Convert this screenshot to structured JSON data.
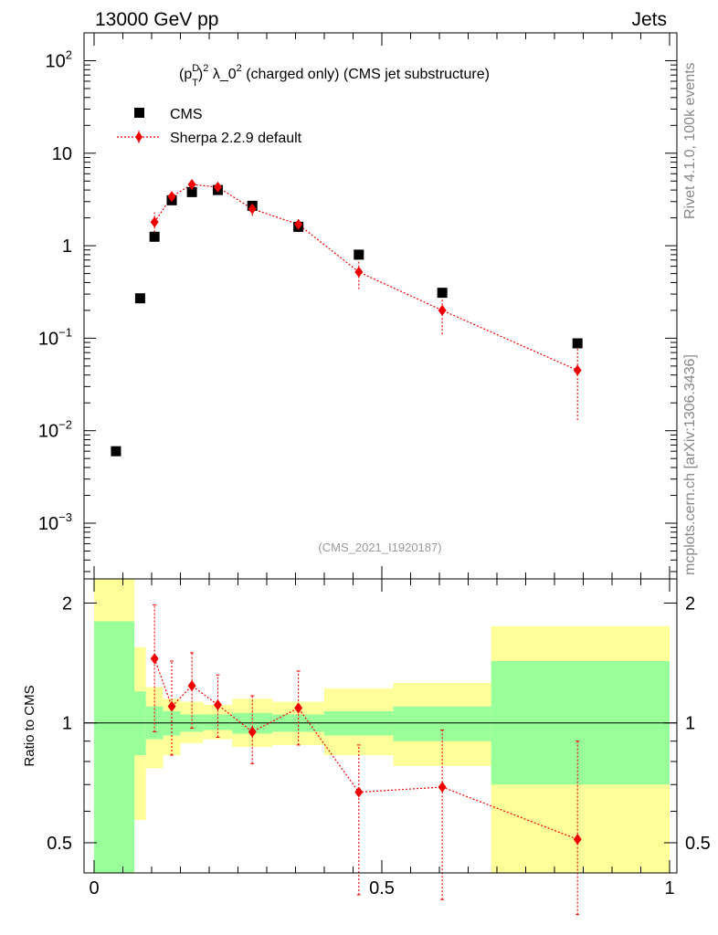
{
  "header": {
    "left": "13000 GeV pp",
    "right": "Jets"
  },
  "side_labels": {
    "rivet": "Rivet 4.1.0,  100k events",
    "site": "mcplots.cern.ch [arXiv:1306.3436]"
  },
  "chart_data": [
    {
      "type": "scatter",
      "panel": "main",
      "title_parts": {
        "p": "(p",
        "sup_d": "D",
        "sub_t": "T",
        "close": ")",
        "sup_2": "2",
        "rest": " λ_0",
        "sup_2b": "2",
        "tail": " (charged only) (CMS jet substructure)"
      },
      "watermark": "(CMS_2021_I1920187)",
      "yscale": "log",
      "xlim": [
        0,
        1
      ],
      "ylim": [
        0.00025,
        200
      ],
      "y_ticks": [
        {
          "v": 0.001,
          "base": "10",
          "exp": "−3"
        },
        {
          "v": 0.01,
          "base": "10",
          "exp": "−2"
        },
        {
          "v": 0.1,
          "base": "10",
          "exp": "−1"
        },
        {
          "v": 1,
          "base": "1",
          "exp": ""
        },
        {
          "v": 10,
          "base": "10",
          "exp": ""
        },
        {
          "v": 100,
          "base": "10",
          "exp": "2"
        }
      ],
      "legend": [
        {
          "name": "CMS",
          "marker": "square",
          "color": "#000000"
        },
        {
          "name": "Sherpa 2.2.9 default",
          "marker": "diamond",
          "color": "#ee0000"
        }
      ],
      "series": [
        {
          "name": "CMS",
          "x": [
            0.038,
            0.08,
            0.105,
            0.135,
            0.17,
            0.215,
            0.275,
            0.355,
            0.46,
            0.605,
            0.84
          ],
          "y": [
            0.006,
            0.27,
            1.25,
            3.1,
            3.8,
            4.0,
            2.7,
            1.6,
            0.8,
            0.31,
            0.088
          ]
        },
        {
          "name": "Sherpa 2.2.9 default",
          "x": [
            0.105,
            0.135,
            0.17,
            0.215,
            0.275,
            0.355,
            0.46,
            0.605,
            0.84
          ],
          "y": [
            1.8,
            3.4,
            4.6,
            4.3,
            2.5,
            1.7,
            0.52,
            0.2,
            0.045
          ],
          "y_lo": [
            1.4,
            2.8,
            4.0,
            3.8,
            2.1,
            1.4,
            0.34,
            0.11,
            0.013
          ],
          "y_hi": [
            2.3,
            4.0,
            5.2,
            4.8,
            2.9,
            2.0,
            0.7,
            0.3,
            0.078
          ]
        }
      ]
    },
    {
      "type": "scatter",
      "panel": "ratio",
      "ylabel": "Ratio to CMS",
      "yscale": "log",
      "xlim": [
        0,
        1
      ],
      "ylim": [
        0.42,
        2.3
      ],
      "y_ticks": [
        {
          "v": 0.5,
          "label": "0.5"
        },
        {
          "v": 1,
          "label": "1"
        },
        {
          "v": 2,
          "label": "2"
        }
      ],
      "x_ticks": [
        {
          "v": 0,
          "label": "0"
        },
        {
          "v": 0.5,
          "label": "0.5"
        },
        {
          "v": 1,
          "label": "1"
        }
      ],
      "bands": {
        "edges": [
          0,
          0.07,
          0.09,
          0.12,
          0.15,
          0.19,
          0.24,
          0.31,
          0.4,
          0.52,
          0.69,
          1.0
        ],
        "green_lo": [
          0.42,
          0.83,
          0.91,
          0.93,
          0.95,
          0.96,
          0.94,
          0.95,
          0.93,
          0.9,
          0.7
        ],
        "green_hi": [
          1.8,
          1.2,
          1.1,
          1.07,
          1.05,
          1.05,
          1.06,
          1.05,
          1.07,
          1.1,
          1.43
        ],
        "yellow_lo": [
          0.42,
          0.57,
          0.77,
          0.83,
          0.89,
          0.91,
          0.87,
          0.88,
          0.83,
          0.78,
          0.42
        ],
        "yellow_hi": [
          2.3,
          1.55,
          1.23,
          1.15,
          1.13,
          1.11,
          1.15,
          1.13,
          1.22,
          1.26,
          1.75
        ]
      },
      "series": [
        {
          "name": "Sherpa 2.2.9 default",
          "x": [
            0.105,
            0.135,
            0.17,
            0.215,
            0.275,
            0.355,
            0.46,
            0.605,
            0.84
          ],
          "y": [
            1.45,
            1.1,
            1.24,
            1.11,
            0.95,
            1.09,
            0.67,
            0.69,
            0.51
          ],
          "y_lo": [
            0.95,
            0.83,
            0.97,
            0.92,
            0.79,
            0.88,
            0.37,
            0.36,
            0.33
          ],
          "y_hi": [
            1.98,
            1.43,
            1.5,
            1.32,
            1.17,
            1.35,
            0.88,
            0.96,
            0.9
          ]
        }
      ]
    }
  ]
}
